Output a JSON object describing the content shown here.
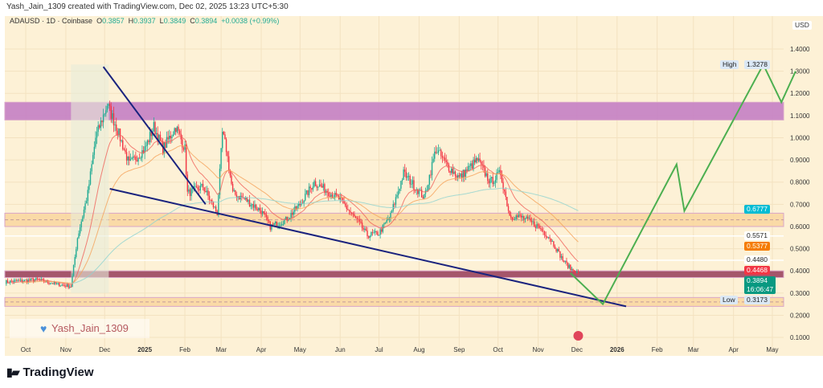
{
  "header": {
    "caption": "Yash_Jain_1309 created with TradingView.com, Dec 02, 2025 13:23 UTC+5:30"
  },
  "legend": {
    "symbol": "ADAUSD · 1D · Coinbase",
    "o_label": "O",
    "o": "0.3857",
    "h_label": "H",
    "h": "0.3937",
    "l_label": "L",
    "l": "0.3849",
    "c_label": "C",
    "c": "0.3894",
    "change": "+0.0038 (+0.99%)"
  },
  "watermark": "Yash_Jain_1309",
  "brand": "TradingView",
  "colors": {
    "up": "#22ab94",
    "down": "#f23645",
    "bg": "#fdf1d6",
    "channel": "#1a237e",
    "projection": "#4caf50",
    "zone_purple": "#c47fc4",
    "zone_orange": "#f9d49b",
    "zone_maroon": "#a5566b"
  },
  "chart_data": {
    "type": "candlestick",
    "currency": "USD",
    "ylim": [
      0.05,
      1.48
    ],
    "y_ticks": [
      "1.4000",
      "1.3000",
      "1.2000",
      "1.1000",
      "1.0000",
      "0.9000",
      "0.8000",
      "0.7000",
      "0.6000",
      "0.5000",
      "0.4000",
      "0.3000",
      "0.2000",
      "0.1000"
    ],
    "x_ticks": [
      "Oct",
      "Nov",
      "Dec",
      "2025",
      "Feb",
      "Mar",
      "Apr",
      "May",
      "Jun",
      "Jul",
      "Aug",
      "Sep",
      "Oct",
      "Nov",
      "Dec",
      "2026",
      "Feb",
      "Mar",
      "Apr",
      "May"
    ],
    "approx_closes": [
      [
        "2024-09-15",
        0.35
      ],
      [
        "2024-10-10",
        0.36
      ],
      [
        "2024-10-25",
        0.34
      ],
      [
        "2024-11-05",
        0.33
      ],
      [
        "2024-11-10",
        0.55
      ],
      [
        "2024-11-18",
        0.75
      ],
      [
        "2024-11-24",
        1.0
      ],
      [
        "2024-12-03",
        1.15
      ],
      [
        "2024-12-10",
        1.05
      ],
      [
        "2024-12-20",
        0.88
      ],
      [
        "2025-01-01",
        0.95
      ],
      [
        "2025-01-08",
        1.05
      ],
      [
        "2025-01-15",
        0.95
      ],
      [
        "2025-01-25",
        1.05
      ],
      [
        "2025-02-01",
        0.95
      ],
      [
        "2025-02-03",
        0.75
      ],
      [
        "2025-02-15",
        0.78
      ],
      [
        "2025-02-26",
        0.66
      ],
      [
        "2025-03-02",
        1.02
      ],
      [
        "2025-03-05",
        0.95
      ],
      [
        "2025-03-10",
        0.75
      ],
      [
        "2025-03-20",
        0.72
      ],
      [
        "2025-04-01",
        0.67
      ],
      [
        "2025-04-08",
        0.6
      ],
      [
        "2025-04-20",
        0.63
      ],
      [
        "2025-05-01",
        0.7
      ],
      [
        "2025-05-12",
        0.8
      ],
      [
        "2025-06-01",
        0.72
      ],
      [
        "2025-06-15",
        0.62
      ],
      [
        "2025-06-22",
        0.56
      ],
      [
        "2025-07-01",
        0.57
      ],
      [
        "2025-07-10",
        0.65
      ],
      [
        "2025-07-20",
        0.84
      ],
      [
        "2025-08-05",
        0.73
      ],
      [
        "2025-08-14",
        0.95
      ],
      [
        "2025-08-22",
        0.88
      ],
      [
        "2025-09-01",
        0.82
      ],
      [
        "2025-09-15",
        0.9
      ],
      [
        "2025-09-25",
        0.8
      ],
      [
        "2025-10-03",
        0.84
      ],
      [
        "2025-10-10",
        0.65
      ],
      [
        "2025-10-20",
        0.64
      ],
      [
        "2025-11-01",
        0.6
      ],
      [
        "2025-11-10",
        0.55
      ],
      [
        "2025-11-20",
        0.45
      ],
      [
        "2025-11-26",
        0.41
      ],
      [
        "2025-12-02",
        0.3894
      ]
    ],
    "zones": [
      [
        1.08,
        1.16,
        "purple"
      ],
      [
        0.6,
        0.66,
        "orange"
      ],
      [
        0.37,
        0.4,
        "maroon"
      ],
      [
        0.24,
        0.28,
        "orange"
      ]
    ],
    "channel_upper": [
      [
        "2024-11-30",
        1.32
      ],
      [
        "2025-02-17",
        0.7
      ]
    ],
    "channel_lower": [
      [
        "2024-12-05",
        0.77
      ],
      [
        "2026-01-08",
        0.24
      ]
    ],
    "projection": [
      [
        "2025-11-26",
        0.39
      ],
      [
        "2025-12-21",
        0.25
      ],
      [
        "2026-02-16",
        0.88
      ],
      [
        "2026-02-22",
        0.67
      ],
      [
        "2026-04-24",
        1.33
      ],
      [
        "2026-05-08",
        1.16
      ],
      [
        "2026-05-19",
        1.3
      ]
    ],
    "price_labels": [
      {
        "text": "High",
        "value": "1.3278",
        "kind": "high"
      },
      {
        "value": "0.6777",
        "kind": "cyan"
      },
      {
        "value": "0.5571",
        "kind": "white"
      },
      {
        "value": "0.5377",
        "kind": "orange"
      },
      {
        "value": "0.4480",
        "kind": "white"
      },
      {
        "value": "0.4468",
        "kind": "red"
      },
      {
        "value": "0.3894",
        "sub": "16:06:47",
        "kind": "green"
      },
      {
        "text": "Low",
        "value": "0.3173",
        "kind": "low"
      }
    ]
  }
}
